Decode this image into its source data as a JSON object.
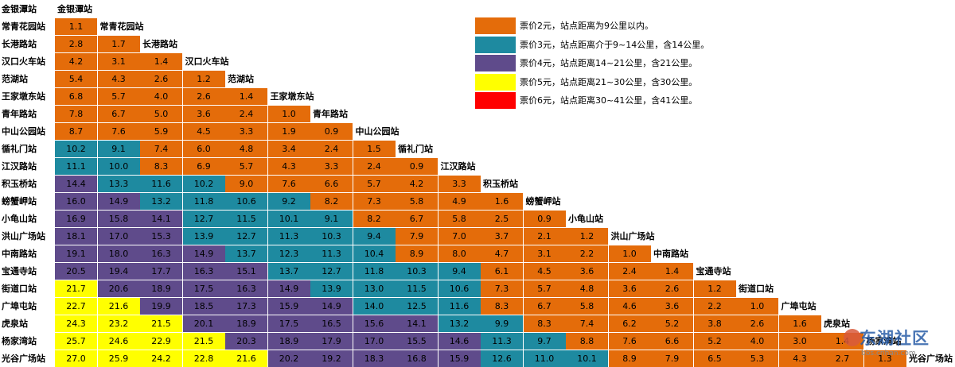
{
  "stations": [
    "金银潭站",
    "常青花园站",
    "长港路站",
    "汉口火车站",
    "范湖站",
    "王家墩东站",
    "青年路站",
    "中山公园站",
    "循礼门站",
    "江汉路站",
    "积玉桥站",
    "螃蟹岬站",
    "小龟山站",
    "洪山广场站",
    "中南路站",
    "宝通寺站",
    "街道口站",
    "广埠屯站",
    "虎泉站",
    "杨家湾站",
    "光谷广场站"
  ],
  "colors": {
    "tier1": "#e46c0a",
    "tier2": "#1e8aa0",
    "tier3": "#5f4b8b",
    "tier4": "#ffff00",
    "tier5": "#ff0000"
  },
  "legend": [
    {
      "color": "#e46c0a",
      "text": "票价2元，站点距离为9公里以内。"
    },
    {
      "color": "#1e8aa0",
      "text": "票价3元，站点距离介于9~14公里，含14公里。"
    },
    {
      "color": "#5f4b8b",
      "text": "票价4元，站点距离14~21公里，含21公里。"
    },
    {
      "color": "#ffff00",
      "text": "票价5元，站点距离21~30公里，含30公里。"
    },
    {
      "color": "#ff0000",
      "text": "票价6元，站点距离30~41公里，含41公里。"
    }
  ],
  "matrix": [
    [],
    [
      "1.1"
    ],
    [
      "2.8",
      "1.7"
    ],
    [
      "4.2",
      "3.1",
      "1.4"
    ],
    [
      "5.4",
      "4.3",
      "2.6",
      "1.2"
    ],
    [
      "6.8",
      "5.7",
      "4.0",
      "2.6",
      "1.4"
    ],
    [
      "7.8",
      "6.7",
      "5.0",
      "3.6",
      "2.4",
      "1.0"
    ],
    [
      "8.7",
      "7.6",
      "5.9",
      "4.5",
      "3.3",
      "1.9",
      "0.9"
    ],
    [
      "10.2",
      "9.1",
      "7.4",
      "6.0",
      "4.8",
      "3.4",
      "2.4",
      "1.5"
    ],
    [
      "11.1",
      "10.0",
      "8.3",
      "6.9",
      "5.7",
      "4.3",
      "3.3",
      "2.4",
      "0.9"
    ],
    [
      "14.4",
      "13.3",
      "11.6",
      "10.2",
      "9.0",
      "7.6",
      "6.6",
      "5.7",
      "4.2",
      "3.3"
    ],
    [
      "16.0",
      "14.9",
      "13.2",
      "11.8",
      "10.6",
      "9.2",
      "8.2",
      "7.3",
      "5.8",
      "4.9",
      "1.6"
    ],
    [
      "16.9",
      "15.8",
      "14.1",
      "12.7",
      "11.5",
      "10.1",
      "9.1",
      "8.2",
      "6.7",
      "5.8",
      "2.5",
      "0.9"
    ],
    [
      "18.1",
      "17.0",
      "15.3",
      "13.9",
      "12.7",
      "11.3",
      "10.3",
      "9.4",
      "7.9",
      "7.0",
      "3.7",
      "2.1",
      "1.2"
    ],
    [
      "19.1",
      "18.0",
      "16.3",
      "14.9",
      "13.7",
      "12.3",
      "11.3",
      "10.4",
      "8.9",
      "8.0",
      "4.7",
      "3.1",
      "2.2",
      "1.0"
    ],
    [
      "20.5",
      "19.4",
      "17.7",
      "16.3",
      "15.1",
      "13.7",
      "12.7",
      "11.8",
      "10.3",
      "9.4",
      "6.1",
      "4.5",
      "3.6",
      "2.4",
      "1.4"
    ],
    [
      "21.7",
      "20.6",
      "18.9",
      "17.5",
      "16.3",
      "14.9",
      "13.9",
      "13.0",
      "11.5",
      "10.6",
      "7.3",
      "5.7",
      "4.8",
      "3.6",
      "2.6",
      "1.2"
    ],
    [
      "22.7",
      "21.6",
      "19.9",
      "18.5",
      "17.3",
      "15.9",
      "14.9",
      "14.0",
      "12.5",
      "11.6",
      "8.3",
      "6.7",
      "5.8",
      "4.6",
      "3.6",
      "2.2",
      "1.0"
    ],
    [
      "24.3",
      "23.2",
      "21.5",
      "20.1",
      "18.9",
      "17.5",
      "16.5",
      "15.6",
      "14.1",
      "13.2",
      "9.9",
      "8.3",
      "7.4",
      "6.2",
      "5.2",
      "3.8",
      "2.6",
      "1.6"
    ],
    [
      "25.7",
      "24.6",
      "22.9",
      "21.5",
      "20.3",
      "18.9",
      "17.9",
      "17.0",
      "15.5",
      "14.6",
      "11.3",
      "9.7",
      "8.8",
      "7.6",
      "6.6",
      "5.2",
      "4.0",
      "3.0",
      "1.4"
    ],
    [
      "27.0",
      "25.9",
      "24.2",
      "22.8",
      "21.6",
      "20.2",
      "19.2",
      "18.3",
      "16.8",
      "15.9",
      "12.6",
      "11.0",
      "10.1",
      "8.9",
      "7.9",
      "6.5",
      "5.3",
      "4.3",
      "2.7",
      "1.3"
    ]
  ],
  "watermark": {
    "logo": "东湖社区",
    "url": "bbs.cnhan.com"
  }
}
